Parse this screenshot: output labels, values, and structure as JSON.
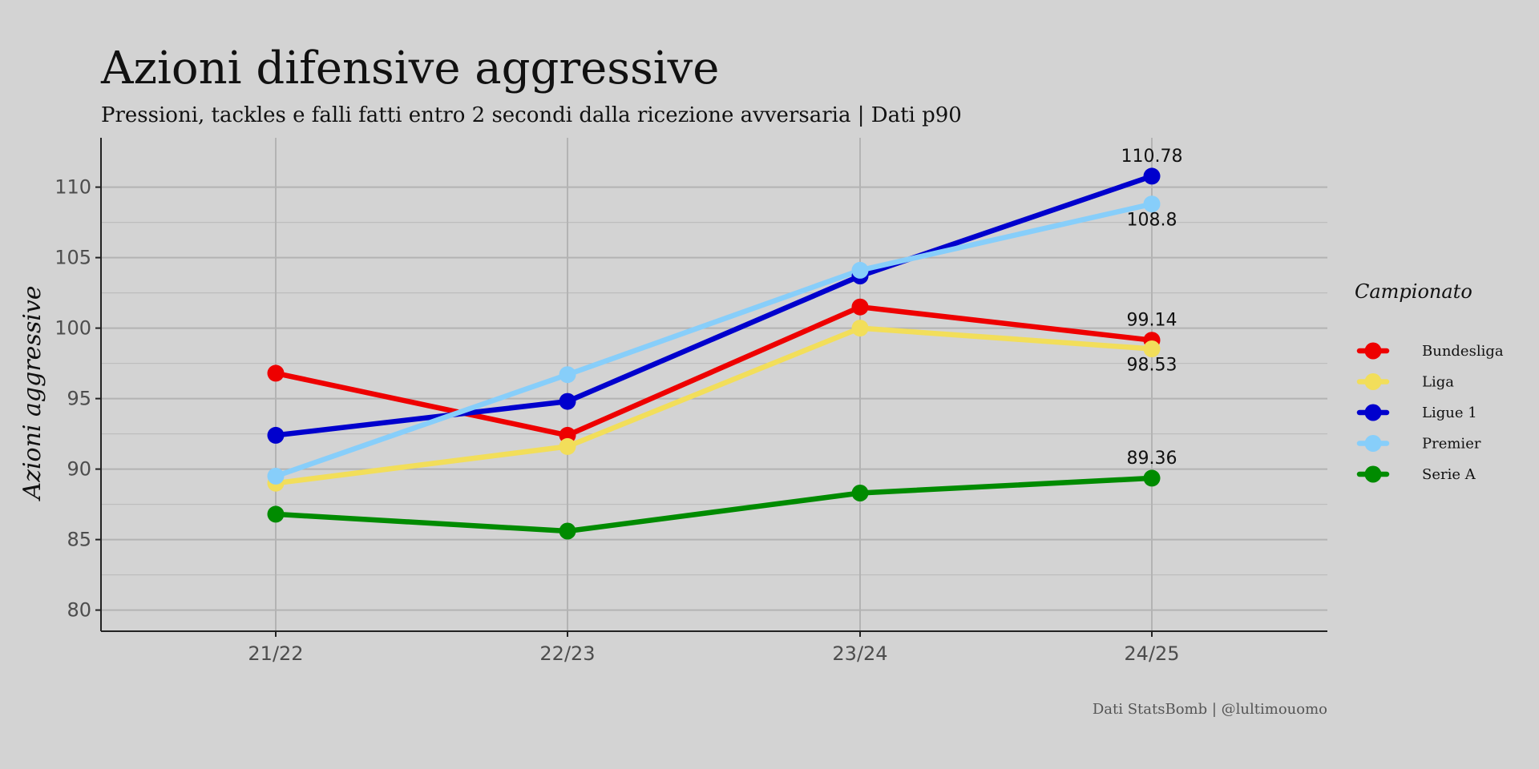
{
  "chart_data": {
    "type": "line",
    "title": "Azioni difensive aggressive",
    "subtitle": "Pressioni, tackles e falli fatti entro 2 secondi dalla ricezione avversaria | Dati p90",
    "xlabel": "",
    "ylabel": "Azioni aggressive",
    "categories": [
      "21/22",
      "22/23",
      "23/24",
      "24/25"
    ],
    "ylim": [
      78.5,
      113.5
    ],
    "yticks": [
      80,
      85,
      90,
      95,
      100,
      105,
      110
    ],
    "grid": true,
    "legend_title": "Campionato",
    "legend_position": "right",
    "caption": "Dati StatsBomb | @lultimouomo",
    "series": [
      {
        "name": "Bundesliga",
        "color": "#ee0000",
        "values": [
          96.8,
          92.4,
          101.5,
          99.14
        ]
      },
      {
        "name": "Liga",
        "color": "#f2de5a",
        "values": [
          89.0,
          91.6,
          100.0,
          98.53
        ]
      },
      {
        "name": "Ligue 1",
        "color": "#0000cd",
        "values": [
          92.4,
          94.8,
          103.7,
          110.78
        ]
      },
      {
        "name": "Premier",
        "color": "#87cefa",
        "values": [
          89.5,
          96.7,
          104.1,
          108.8
        ]
      },
      {
        "name": "Serie A",
        "color": "#008b00",
        "values": [
          86.8,
          85.6,
          88.3,
          89.36
        ]
      }
    ],
    "annotations": [
      {
        "series": "Ligue 1",
        "category": "24/25",
        "text": "110.78",
        "placement": "above"
      },
      {
        "series": "Premier",
        "category": "24/25",
        "text": "108.8",
        "placement": "below"
      },
      {
        "series": "Bundesliga",
        "category": "24/25",
        "text": "99.14",
        "placement": "above"
      },
      {
        "series": "Liga",
        "category": "24/25",
        "text": "98.53",
        "placement": "below"
      },
      {
        "series": "Serie A",
        "category": "24/25",
        "text": "89.36",
        "placement": "above"
      }
    ]
  }
}
